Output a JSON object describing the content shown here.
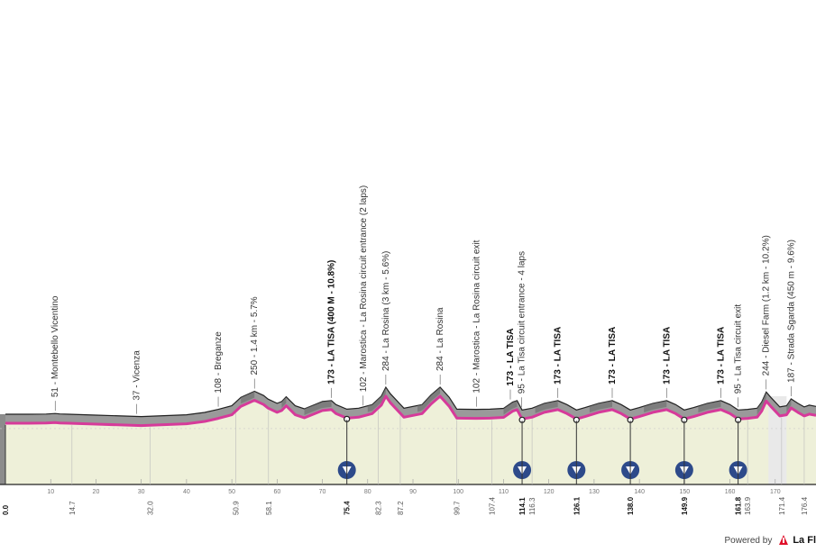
{
  "chart_data": {
    "type": "area",
    "title": "",
    "xlabel": "",
    "ylabel": "",
    "xlim": [
      0,
      179
    ],
    "ylim": [
      0,
      500
    ],
    "grid": false,
    "x_ticks": [
      10,
      20,
      30,
      40,
      50,
      60,
      70,
      80,
      90,
      100,
      110,
      120,
      130,
      140,
      150,
      160,
      170
    ],
    "profile": [
      [
        0,
        60
      ],
      [
        5,
        60
      ],
      [
        9,
        61
      ],
      [
        11,
        66
      ],
      [
        12,
        62
      ],
      [
        14,
        60
      ],
      [
        20,
        52
      ],
      [
        30,
        40
      ],
      [
        40,
        55
      ],
      [
        44,
        75
      ],
      [
        47,
        100
      ],
      [
        50,
        130
      ],
      [
        52,
        200
      ],
      [
        55,
        250
      ],
      [
        57,
        215
      ],
      [
        58,
        185
      ],
      [
        60,
        150
      ],
      [
        61,
        165
      ],
      [
        62,
        205
      ],
      [
        64,
        130
      ],
      [
        66,
        105
      ],
      [
        70,
        165
      ],
      [
        72,
        173
      ],
      [
        73,
        140
      ],
      [
        75.4,
        102
      ],
      [
        78,
        110
      ],
      [
        81,
        140
      ],
      [
        83,
        210
      ],
      [
        84,
        284
      ],
      [
        85,
        230
      ],
      [
        87,
        150
      ],
      [
        88,
        110
      ],
      [
        92,
        140
      ],
      [
        94,
        220
      ],
      [
        96,
        284
      ],
      [
        98,
        200
      ],
      [
        99.7,
        102
      ],
      [
        104,
        100
      ],
      [
        107,
        102
      ],
      [
        110,
        108
      ],
      [
        112,
        160
      ],
      [
        113,
        173
      ],
      [
        114.1,
        95
      ],
      [
        116.3,
        110
      ],
      [
        119,
        150
      ],
      [
        122,
        173
      ],
      [
        124,
        140
      ],
      [
        126.1,
        95
      ],
      [
        128,
        115
      ],
      [
        131,
        150
      ],
      [
        134,
        173
      ],
      [
        136,
        140
      ],
      [
        138,
        95
      ],
      [
        140,
        115
      ],
      [
        143,
        150
      ],
      [
        146,
        173
      ],
      [
        148,
        140
      ],
      [
        149.9,
        95
      ],
      [
        152,
        115
      ],
      [
        155,
        150
      ],
      [
        158,
        173
      ],
      [
        160,
        140
      ],
      [
        161.8,
        95
      ],
      [
        163.9,
        100
      ],
      [
        166,
        110
      ],
      [
        167,
        160
      ],
      [
        168,
        244
      ],
      [
        169,
        200
      ],
      [
        171,
        120
      ],
      [
        172.5,
        130
      ],
      [
        173.5,
        187
      ],
      [
        175,
        150
      ],
      [
        176.4,
        120
      ],
      [
        177.5,
        135
      ],
      [
        179,
        125
      ]
    ],
    "km_labels": [
      {
        "x": 0,
        "label": "0.0",
        "bold": true
      },
      {
        "x": 14.7,
        "label": "14.7",
        "bold": false
      },
      {
        "x": 32.0,
        "label": "32.0",
        "bold": false
      },
      {
        "x": 50.9,
        "label": "50.9",
        "bold": false
      },
      {
        "x": 58.1,
        "label": "58.1",
        "bold": false
      },
      {
        "x": 75.4,
        "label": "75.4",
        "bold": true
      },
      {
        "x": 82.3,
        "label": "82.3",
        "bold": false
      },
      {
        "x": 87.2,
        "label": "87.2",
        "bold": false
      },
      {
        "x": 99.7,
        "label": "99.7",
        "bold": false
      },
      {
        "x": 107.4,
        "label": "107.4",
        "bold": false
      },
      {
        "x": 114.1,
        "label": "114.1",
        "bold": true
      },
      {
        "x": 116.3,
        "label": "116.3",
        "bold": false
      },
      {
        "x": 126.1,
        "label": "126.1",
        "bold": true
      },
      {
        "x": 138.0,
        "label": "138.0",
        "bold": true
      },
      {
        "x": 149.9,
        "label": "149.9",
        "bold": true
      },
      {
        "x": 161.8,
        "label": "161.8",
        "bold": true
      },
      {
        "x": 163.9,
        "label": "163.9",
        "bold": false
      },
      {
        "x": 171.4,
        "label": "171.4",
        "bold": false
      },
      {
        "x": 176.4,
        "label": "176.4",
        "bold": false
      }
    ],
    "landmarks": [
      {
        "x": 11,
        "alt": 66,
        "label": "51 - Montebello Vicentino",
        "bold": false
      },
      {
        "x": 29,
        "alt": 40,
        "label": "37 - Vicenza",
        "bold": false
      },
      {
        "x": 47,
        "alt": 100,
        "label": "108 - Breganze",
        "bold": false
      },
      {
        "x": 55,
        "alt": 250,
        "label": "250 - 1.4 km - 5.7%",
        "bold": false
      },
      {
        "x": 72,
        "alt": 173,
        "label": "173 - LA TISA (400 M - 10.8%)",
        "bold": true
      },
      {
        "x": 79,
        "alt": 110,
        "label": "102 - Marostica - La Rosina circuit entrance (2 laps)",
        "bold": false
      },
      {
        "x": 84,
        "alt": 284,
        "label": "284 - La Rosina (3 km - 5.6%)",
        "bold": false
      },
      {
        "x": 96,
        "alt": 284,
        "label": "284 - La Rosina",
        "bold": false
      },
      {
        "x": 104,
        "alt": 100,
        "label": "102 - Marostica - La Rosina circuit exit",
        "bold": false
      },
      {
        "x": 111.5,
        "alt": 160,
        "label": "173 - LA TISA",
        "bold": true
      },
      {
        "x": 114,
        "alt": 95,
        "label": "95 - La Tisa circuit entrance - 4 laps",
        "bold": false
      },
      {
        "x": 122,
        "alt": 173,
        "label": "173 - LA TISA",
        "bold": true
      },
      {
        "x": 134,
        "alt": 173,
        "label": "173 - LA TISA",
        "bold": true
      },
      {
        "x": 146,
        "alt": 173,
        "label": "173 - LA TISA",
        "bold": true
      },
      {
        "x": 158,
        "alt": 173,
        "label": "173 - LA TISA",
        "bold": true
      },
      {
        "x": 161.8,
        "alt": 95,
        "label": "95 - La Tisa circuit exit",
        "bold": false
      },
      {
        "x": 168,
        "alt": 244,
        "label": "244 - Diesel Farm (1.2 km - 10.2%)",
        "bold": false
      },
      {
        "x": 173.5,
        "alt": 187,
        "label": "187 - Strada Sgarda (450 m - 9.6%)",
        "bold": false
      }
    ],
    "markers": [
      75.4,
      114.1,
      126.1,
      138.0,
      149.9,
      161.8
    ],
    "climbs": [
      [
        52,
        55
      ],
      [
        61,
        62
      ],
      [
        66,
        72
      ],
      [
        80,
        84
      ],
      [
        91,
        96
      ],
      [
        110,
        113
      ],
      [
        117,
        122
      ],
      [
        129,
        134
      ],
      [
        141,
        146
      ],
      [
        153,
        158
      ],
      [
        166,
        168
      ],
      [
        172.5,
        173.5
      ]
    ],
    "segment_colors": {
      "profile": "#9a9a9a",
      "band": "#eef0d9",
      "line": "#d63a9a",
      "climb": "#666666",
      "marker": "#2d4a8a",
      "axis": "#222222"
    }
  },
  "footer": {
    "powered_by": "Powered by",
    "brand": "La Fl"
  }
}
